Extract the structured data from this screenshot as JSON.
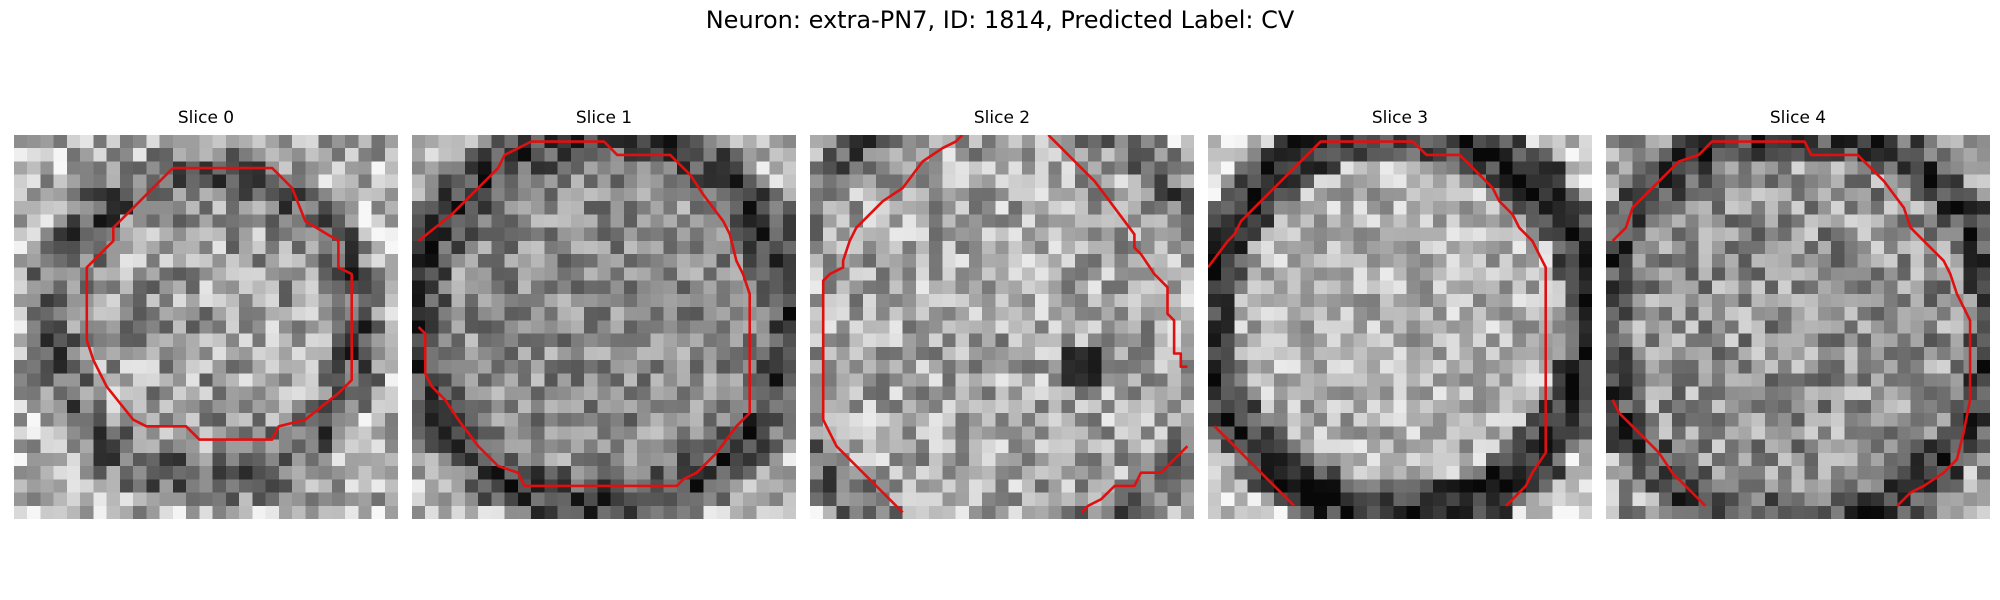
{
  "figure": {
    "title": "Neuron: extra-PN7, ID: 1814, Predicted Label: CV"
  },
  "panels": [
    {
      "label": "Slice 0"
    },
    {
      "label": "Slice 1"
    },
    {
      "label": "Slice 2"
    },
    {
      "label": "Slice 3"
    },
    {
      "label": "Slice 4"
    }
  ],
  "colors": {
    "contour": "#e01010"
  }
}
